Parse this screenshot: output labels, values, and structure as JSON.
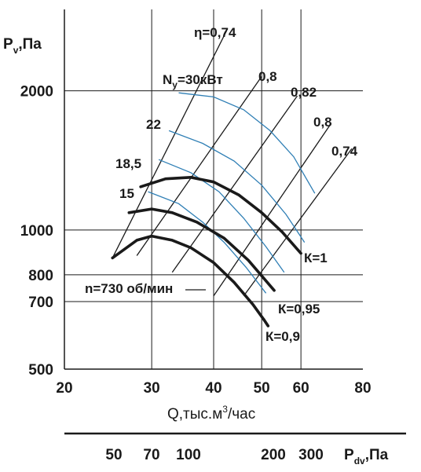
{
  "chart_data": {
    "type": "line",
    "title": "",
    "xlabel": "Q,тыс.м",
    "xlabel_sup": "3",
    "xlabel_tail": "/час",
    "ylabel": "P",
    "ylabel_sub": "v",
    "ylabel_tail": ",Па",
    "xscale": "log",
    "yscale": "log",
    "xlim": [
      20,
      80
    ],
    "ylim": [
      500,
      3000
    ],
    "x_ticks": [
      20,
      30,
      40,
      50,
      60,
      80
    ],
    "y_ticks": [
      500,
      700,
      800,
      1000,
      2000
    ],
    "grid": true,
    "series": [
      {
        "name": "n=730 об/мин",
        "x": [
          25,
          28,
          30,
          33,
          36,
          40,
          44,
          48,
          50.5
        ],
        "y": [
          870,
          950,
          970,
          950,
          915,
          850,
          770,
          690,
          640
        ]
      },
      {
        "name": "К=0,9",
        "x": [
          50.5,
          51.5
        ],
        "y": [
          640,
          620
        ]
      },
      {
        "name": "К=0,95",
        "x": [
          27,
          30,
          33,
          37,
          42,
          47,
          53
        ],
        "y": [
          1090,
          1110,
          1090,
          1040,
          960,
          860,
          740
        ]
      },
      {
        "name": "К=1",
        "x": [
          28.5,
          32,
          36,
          40,
          45,
          50,
          55,
          60
        ],
        "y": [
          1240,
          1290,
          1300,
          1270,
          1190,
          1090,
          990,
          890
        ]
      }
    ],
    "efficiency_rays": [
      {
        "label": "η=0,74",
        "x": [
          25,
          42.5
        ],
        "y": [
          870,
          2700
        ]
      },
      {
        "label": "0,8",
        "x": [
          28,
          50
        ],
        "y": [
          880,
          2150
        ]
      },
      {
        "label": "0,82",
        "x": [
          33,
          59
        ],
        "y": [
          810,
          1950
        ]
      },
      {
        "label": "0,8",
        "x": [
          40,
          69
        ],
        "y": [
          720,
          1700
        ]
      },
      {
        "label": "0,74",
        "x": [
          46,
          76
        ],
        "y": [
          720,
          1500
        ]
      }
    ],
    "power_curves": [
      {
        "label": "Ny=30кВт",
        "x": [
          34,
          40,
          46,
          52,
          58,
          64
        ],
        "y": [
          1980,
          1940,
          1820,
          1640,
          1440,
          1200
        ]
      },
      {
        "label": "22",
        "x": [
          32.5,
          38,
          44,
          50,
          56,
          61
        ],
        "y": [
          1640,
          1540,
          1410,
          1250,
          1080,
          940
        ]
      },
      {
        "label": "18,5",
        "x": [
          31,
          36,
          41,
          46,
          51,
          55.5
        ],
        "y": [
          1420,
          1330,
          1210,
          1060,
          920,
          810
        ]
      },
      {
        "label": "15",
        "x": [
          29.5,
          34,
          38,
          42,
          46.5,
          51
        ],
        "y": [
          1210,
          1140,
          1040,
          940,
          830,
          730
        ]
      }
    ],
    "annotations": {
      "eta_label": "η=0,74",
      "eta_0_8_a": "0,8",
      "eta_0_82": "0,82",
      "eta_0_8_b": "0,8",
      "eta_0_74": "0,74",
      "power_30": "N",
      "power_30_sub": "y",
      "power_30_tail": "=30кВт",
      "power_22": "22",
      "power_18_5": "18,5",
      "power_15": "15",
      "speed": "n=730 об/мин",
      "k1": "К=1",
      "k095": "К=0,95",
      "k09": "К=0,9"
    },
    "dynamic_pressure_axis": {
      "label": "P",
      "label_sub": "dv",
      "label_tail": ",Па",
      "ticks": [
        50,
        70,
        100,
        200,
        300
      ]
    },
    "colors": {
      "efficiency": "#1a1a1a",
      "power": "#2f7fb5",
      "characteristic": "#1a1a1a",
      "grid": "#1a1a1a"
    }
  }
}
